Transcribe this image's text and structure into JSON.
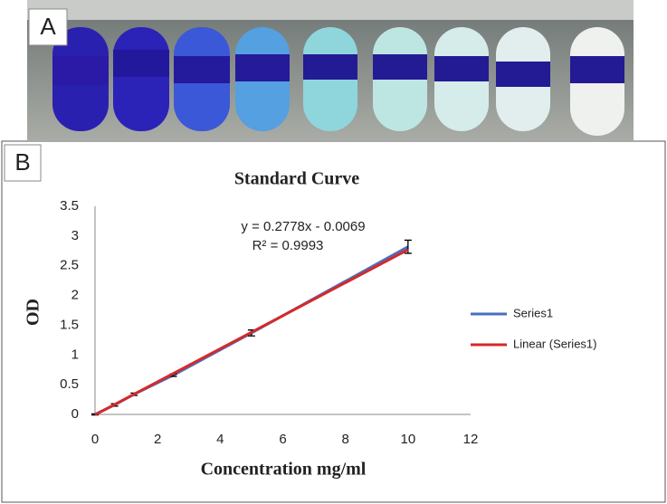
{
  "panel_labels": [
    "A",
    "B"
  ],
  "chart_data": {
    "type": "line",
    "title": "Standard Curve",
    "x_label": "Concentration mg/ml",
    "y_label": "OD",
    "x": [
      0,
      0.625,
      1.25,
      2.5,
      5,
      10
    ],
    "series": [
      {
        "name": "Series1",
        "color": "#4a6fbd",
        "values": [
          0,
          0.16,
          0.34,
          0.66,
          1.37,
          2.82
        ],
        "errors": [
          0.01,
          0.02,
          0.02,
          0.02,
          0.05,
          0.11
        ]
      },
      {
        "name": "Linear (Series1)",
        "color": "#d42a2a",
        "x": [
          0,
          10
        ],
        "values": [
          -0.0069,
          2.7711
        ]
      }
    ],
    "annotations": [
      "y = 0.2778x - 0.0069",
      "R² = 0.9993"
    ],
    "xlim": [
      0,
      12
    ],
    "ylim": [
      0,
      3.5
    ],
    "xticks": [
      0,
      2,
      4,
      6,
      8,
      10,
      12
    ],
    "yticks": [
      0,
      0.5,
      1,
      1.5,
      2,
      2.5,
      3,
      3.5
    ],
    "grid": false,
    "legend": "right"
  }
}
